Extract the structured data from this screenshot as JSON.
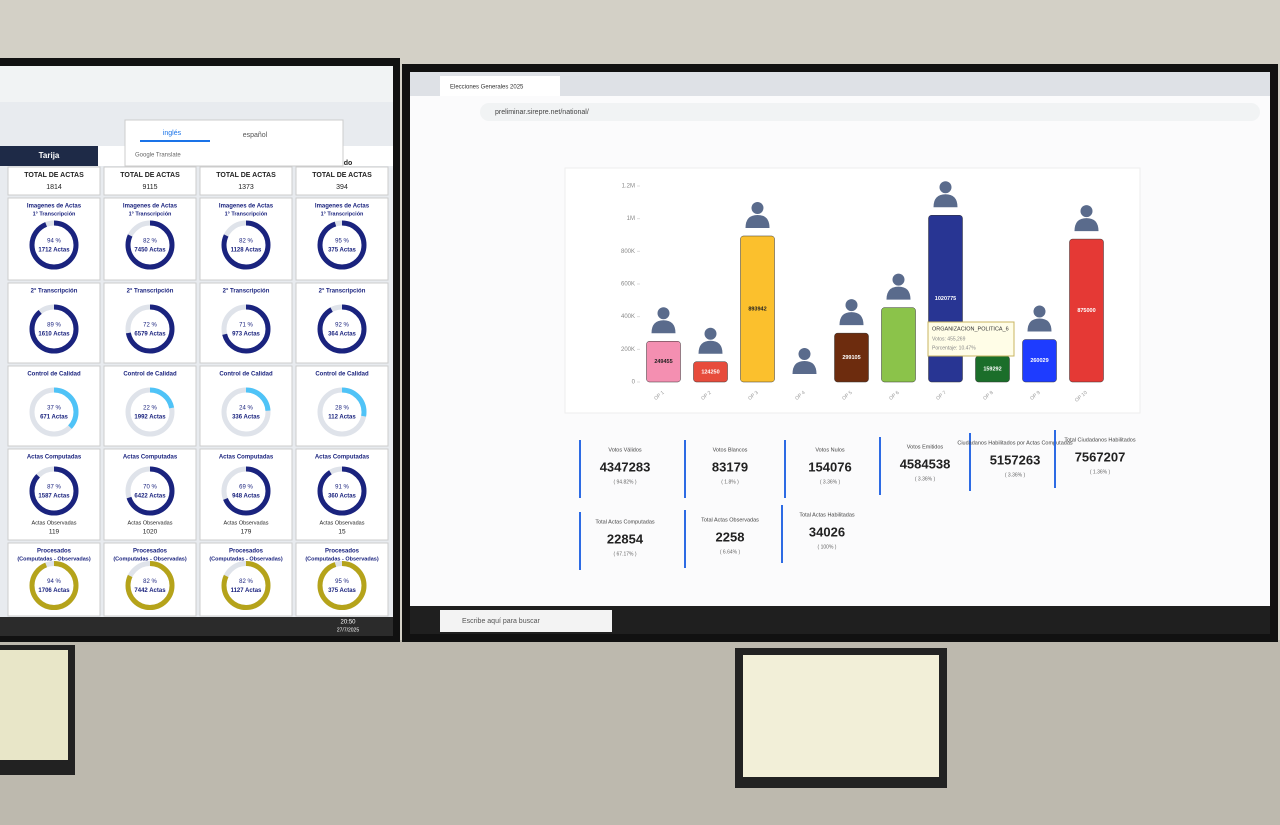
{
  "chart_data": {
    "type": "bar",
    "categories": [
      "OP 1",
      "OP 2",
      "OP 3",
      "OP 4",
      "OP 5",
      "OP 6",
      "OP 7",
      "OP 8",
      "OP 9",
      "OP 10"
    ],
    "values": [
      249455,
      124250,
      893942,
      0,
      299105,
      455269,
      1020775,
      159292,
      260029,
      875000
    ],
    "value_labels": [
      "249455",
      "124250",
      "893942",
      null,
      "299105",
      null,
      "1020775",
      "159292",
      "260029",
      "875000"
    ],
    "colors": [
      "#f48fb1",
      "#e74c3c",
      "#fbc02d",
      "#9e9e9e",
      "#6d2c0e",
      "#8bc34a",
      "#283593",
      "#1b6e2a",
      "#1e3cff",
      "#e53935"
    ],
    "ylim": [
      0,
      1200000
    ],
    "yticks": [
      0,
      {
        "value": 200000,
        "label": "200K"
      },
      {
        "value": 400000,
        "label": "400K"
      },
      {
        "value": 600000,
        "label": "600K"
      },
      {
        "value": 800000,
        "label": "800K"
      },
      {
        "value": 1000000,
        "label": "1M"
      },
      {
        "value": 1200000,
        "label": "1.2M"
      }
    ],
    "tooltip": {
      "title": "ORGANIZACION_POLITICA_6",
      "votes": "Votos: 455,269",
      "percent": "Porcentaje: 10.47%"
    }
  },
  "right_screen": {
    "tab": "Elecciones Generales 2025",
    "url": "preliminar.sirepre.net/national/",
    "search": "Escribe aquí para buscar",
    "cards": [
      {
        "label": "Votos Válidos",
        "value": 4347283,
        "pct": "( 94.82% )"
      },
      {
        "label": "Votos Blancos",
        "value": 83179,
        "pct": "( 1.8% )"
      },
      {
        "label": "Votos Nulos",
        "value": 154076,
        "pct": "( 3.36% )"
      },
      {
        "label": "Votos Emitidos",
        "value": 4584538,
        "pct": "( 3.36% )"
      },
      {
        "label": "Ciudadanos Habilitados por Actas Computadas",
        "value": 5157263,
        "pct": "( 3.36% )"
      },
      {
        "label": "Total Ciudadanos Habilitados",
        "value": 7567207,
        "pct": "( 1.36% )"
      },
      {
        "label": "Total Actas Computadas",
        "value": 22854,
        "pct": "( 67.17% )"
      },
      {
        "label": "Total Actas Observadas",
        "value": 2258,
        "pct": "( 6.64% )"
      },
      {
        "label": "Total Actas Habilitadas",
        "value": 34026,
        "pct": "( 100% )"
      }
    ]
  },
  "left_screen": {
    "translate": {
      "tabs": [
        "inglés",
        "español"
      ],
      "label": "Google Translate"
    },
    "region": "Tarija",
    "header_fragment": "do",
    "time": "20:50",
    "date": "27/7/2025",
    "columns": [
      {
        "total_label": "TOTAL DE ACTAS",
        "total": 1814,
        "cells": [
          {
            "title": "Imagenes de Actas",
            "subtitle": "1° Transcripción",
            "percent": 94,
            "percent_label": "94 %",
            "count": "1712 Actas"
          },
          {
            "title": "2° Transcripción",
            "percent": 89,
            "percent_label": "89 %",
            "count": "1610 Actas"
          },
          {
            "title": "Control de Calidad",
            "percent": 37,
            "percent_label": "37 %",
            "count": "671 Actas"
          },
          {
            "title": "Actas Computadas",
            "percent": 87,
            "percent_label": "87 %",
            "count": "1587 Actas",
            "obs_label": "Actas Observadas",
            "obs": 119
          },
          {
            "title": "Procesados",
            "subtitle": "(Computadas - Observadas)",
            "percent": 94,
            "percent_label": "94 %",
            "count": "1706 Actas"
          }
        ]
      },
      {
        "total_label": "TOTAL DE ACTAS",
        "total": 9115,
        "cells": [
          {
            "title": "Imagenes de Actas",
            "subtitle": "1° Transcripción",
            "percent": 82,
            "percent_label": "82 %",
            "count": "7450 Actas"
          },
          {
            "title": "2° Transcripción",
            "percent": 72,
            "percent_label": "72 %",
            "count": "6579 Actas"
          },
          {
            "title": "Control de Calidad",
            "percent": 22,
            "percent_label": "22 %",
            "count": "1992 Actas"
          },
          {
            "title": "Actas Computadas",
            "percent": 70,
            "percent_label": "70 %",
            "count": "6422 Actas",
            "obs_label": "Actas Observadas",
            "obs": 1020
          },
          {
            "title": "Procesados",
            "subtitle": "(Computadas - Observadas)",
            "percent": 82,
            "percent_label": "82 %",
            "count": "7442 Actas"
          }
        ]
      },
      {
        "total_label": "TOTAL DE ACTAS",
        "total": 1373,
        "cells": [
          {
            "title": "Imagenes de Actas",
            "subtitle": "1° Transcripción",
            "percent": 82,
            "percent_label": "82 %",
            "count": "1128 Actas"
          },
          {
            "title": "2° Transcripción",
            "percent": 71,
            "percent_label": "71 %",
            "count": "973 Actas"
          },
          {
            "title": "Control de Calidad",
            "percent": 24,
            "percent_label": "24 %",
            "count": "336 Actas"
          },
          {
            "title": "Actas Computadas",
            "percent": 69,
            "percent_label": "69 %",
            "count": "948 Actas",
            "obs_label": "Actas Observadas",
            "obs": 179
          },
          {
            "title": "Procesados",
            "subtitle": "(Computadas - Observadas)",
            "percent": 82,
            "percent_label": "82 %",
            "count": "1127 Actas"
          }
        ]
      },
      {
        "total_label": "TOTAL DE ACTAS",
        "total": 394,
        "cells": [
          {
            "title": "Imagenes de Actas",
            "subtitle": "1° Transcripción",
            "percent": 95,
            "percent_label": "95 %",
            "count": "375 Actas"
          },
          {
            "title": "2° Transcripción",
            "percent": 92,
            "percent_label": "92 %",
            "count": "364 Actas"
          },
          {
            "title": "Control de Calidad",
            "percent": 28,
            "percent_label": "28 %",
            "count": "112 Actas"
          },
          {
            "title": "Actas Computadas",
            "percent": 91,
            "percent_label": "91 %",
            "count": "360 Actas",
            "obs_label": "Actas Observadas",
            "obs": 15
          },
          {
            "title": "Procesados",
            "subtitle": "(Computadas - Observadas)",
            "percent": 95,
            "percent_label": "95 %",
            "count": "375 Actas"
          }
        ]
      }
    ]
  }
}
